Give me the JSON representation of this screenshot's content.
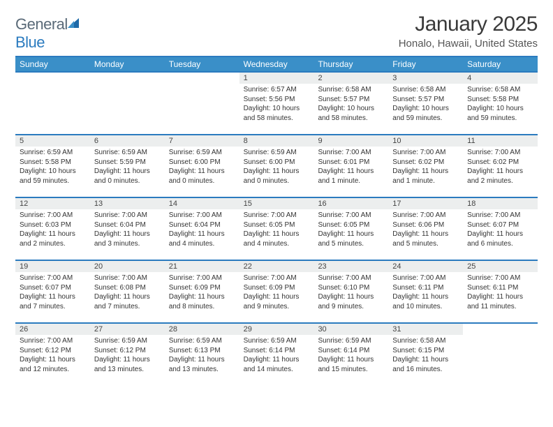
{
  "brand": {
    "part1": "General",
    "part2": "Blue"
  },
  "title": "January 2025",
  "location": "Honalo, Hawaii, United States",
  "colors": {
    "header_bar": "#3a8fc8",
    "rule": "#2b7bbf",
    "daynum_bg": "#eceeee",
    "text": "#333333",
    "title": "#3a3a3a",
    "brand_gray": "#5a6a78",
    "brand_blue": "#2b7bbf"
  },
  "dow": [
    "Sunday",
    "Monday",
    "Tuesday",
    "Wednesday",
    "Thursday",
    "Friday",
    "Saturday"
  ],
  "weeks": [
    [
      {
        "n": "",
        "sr": "",
        "ss": "",
        "dl": ""
      },
      {
        "n": "",
        "sr": "",
        "ss": "",
        "dl": ""
      },
      {
        "n": "",
        "sr": "",
        "ss": "",
        "dl": ""
      },
      {
        "n": "1",
        "sr": "6:57 AM",
        "ss": "5:56 PM",
        "dl": "10 hours and 58 minutes."
      },
      {
        "n": "2",
        "sr": "6:58 AM",
        "ss": "5:57 PM",
        "dl": "10 hours and 58 minutes."
      },
      {
        "n": "3",
        "sr": "6:58 AM",
        "ss": "5:57 PM",
        "dl": "10 hours and 59 minutes."
      },
      {
        "n": "4",
        "sr": "6:58 AM",
        "ss": "5:58 PM",
        "dl": "10 hours and 59 minutes."
      }
    ],
    [
      {
        "n": "5",
        "sr": "6:59 AM",
        "ss": "5:58 PM",
        "dl": "10 hours and 59 minutes."
      },
      {
        "n": "6",
        "sr": "6:59 AM",
        "ss": "5:59 PM",
        "dl": "11 hours and 0 minutes."
      },
      {
        "n": "7",
        "sr": "6:59 AM",
        "ss": "6:00 PM",
        "dl": "11 hours and 0 minutes."
      },
      {
        "n": "8",
        "sr": "6:59 AM",
        "ss": "6:00 PM",
        "dl": "11 hours and 0 minutes."
      },
      {
        "n": "9",
        "sr": "7:00 AM",
        "ss": "6:01 PM",
        "dl": "11 hours and 1 minute."
      },
      {
        "n": "10",
        "sr": "7:00 AM",
        "ss": "6:02 PM",
        "dl": "11 hours and 1 minute."
      },
      {
        "n": "11",
        "sr": "7:00 AM",
        "ss": "6:02 PM",
        "dl": "11 hours and 2 minutes."
      }
    ],
    [
      {
        "n": "12",
        "sr": "7:00 AM",
        "ss": "6:03 PM",
        "dl": "11 hours and 2 minutes."
      },
      {
        "n": "13",
        "sr": "7:00 AM",
        "ss": "6:04 PM",
        "dl": "11 hours and 3 minutes."
      },
      {
        "n": "14",
        "sr": "7:00 AM",
        "ss": "6:04 PM",
        "dl": "11 hours and 4 minutes."
      },
      {
        "n": "15",
        "sr": "7:00 AM",
        "ss": "6:05 PM",
        "dl": "11 hours and 4 minutes."
      },
      {
        "n": "16",
        "sr": "7:00 AM",
        "ss": "6:05 PM",
        "dl": "11 hours and 5 minutes."
      },
      {
        "n": "17",
        "sr": "7:00 AM",
        "ss": "6:06 PM",
        "dl": "11 hours and 5 minutes."
      },
      {
        "n": "18",
        "sr": "7:00 AM",
        "ss": "6:07 PM",
        "dl": "11 hours and 6 minutes."
      }
    ],
    [
      {
        "n": "19",
        "sr": "7:00 AM",
        "ss": "6:07 PM",
        "dl": "11 hours and 7 minutes."
      },
      {
        "n": "20",
        "sr": "7:00 AM",
        "ss": "6:08 PM",
        "dl": "11 hours and 7 minutes."
      },
      {
        "n": "21",
        "sr": "7:00 AM",
        "ss": "6:09 PM",
        "dl": "11 hours and 8 minutes."
      },
      {
        "n": "22",
        "sr": "7:00 AM",
        "ss": "6:09 PM",
        "dl": "11 hours and 9 minutes."
      },
      {
        "n": "23",
        "sr": "7:00 AM",
        "ss": "6:10 PM",
        "dl": "11 hours and 9 minutes."
      },
      {
        "n": "24",
        "sr": "7:00 AM",
        "ss": "6:11 PM",
        "dl": "11 hours and 10 minutes."
      },
      {
        "n": "25",
        "sr": "7:00 AM",
        "ss": "6:11 PM",
        "dl": "11 hours and 11 minutes."
      }
    ],
    [
      {
        "n": "26",
        "sr": "7:00 AM",
        "ss": "6:12 PM",
        "dl": "11 hours and 12 minutes."
      },
      {
        "n": "27",
        "sr": "6:59 AM",
        "ss": "6:12 PM",
        "dl": "11 hours and 13 minutes."
      },
      {
        "n": "28",
        "sr": "6:59 AM",
        "ss": "6:13 PM",
        "dl": "11 hours and 13 minutes."
      },
      {
        "n": "29",
        "sr": "6:59 AM",
        "ss": "6:14 PM",
        "dl": "11 hours and 14 minutes."
      },
      {
        "n": "30",
        "sr": "6:59 AM",
        "ss": "6:14 PM",
        "dl": "11 hours and 15 minutes."
      },
      {
        "n": "31",
        "sr": "6:58 AM",
        "ss": "6:15 PM",
        "dl": "11 hours and 16 minutes."
      },
      {
        "n": "",
        "sr": "",
        "ss": "",
        "dl": ""
      }
    ]
  ],
  "labels": {
    "sunrise": "Sunrise:",
    "sunset": "Sunset:",
    "daylight": "Daylight:"
  }
}
